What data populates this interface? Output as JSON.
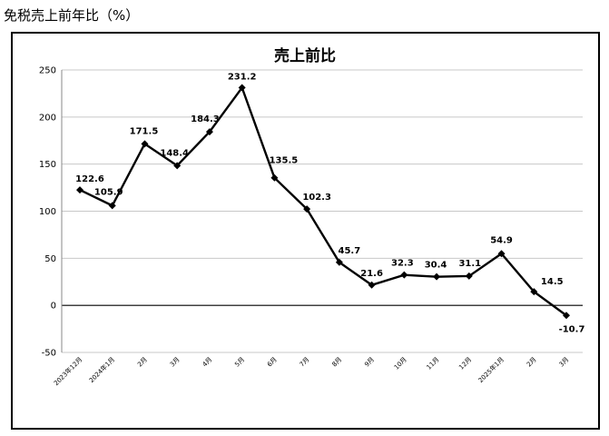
{
  "heading": "免税売上前年比（%）",
  "chart_data": {
    "type": "line",
    "title": "売上前比",
    "xlabel": "",
    "ylabel": "",
    "ylim": [
      -50,
      250
    ],
    "yticks": [
      -50,
      0,
      50,
      100,
      150,
      200,
      250
    ],
    "grid": true,
    "legend": "none",
    "categories": [
      "2023年12月",
      "2024年1月",
      "2月",
      "3月",
      "4月",
      "5月",
      "6月",
      "7月",
      "8月",
      "9月",
      "10月",
      "11月",
      "12月",
      "2025年1月",
      "2月",
      "3月"
    ],
    "series": [
      {
        "values": [
          122.6,
          105.9,
          171.5,
          148.4,
          184.3,
          231.2,
          135.5,
          102.3,
          45.7,
          21.6,
          32.3,
          30.4,
          31.1,
          54.9,
          14.5,
          -10.7
        ],
        "color": "#000000"
      }
    ]
  }
}
